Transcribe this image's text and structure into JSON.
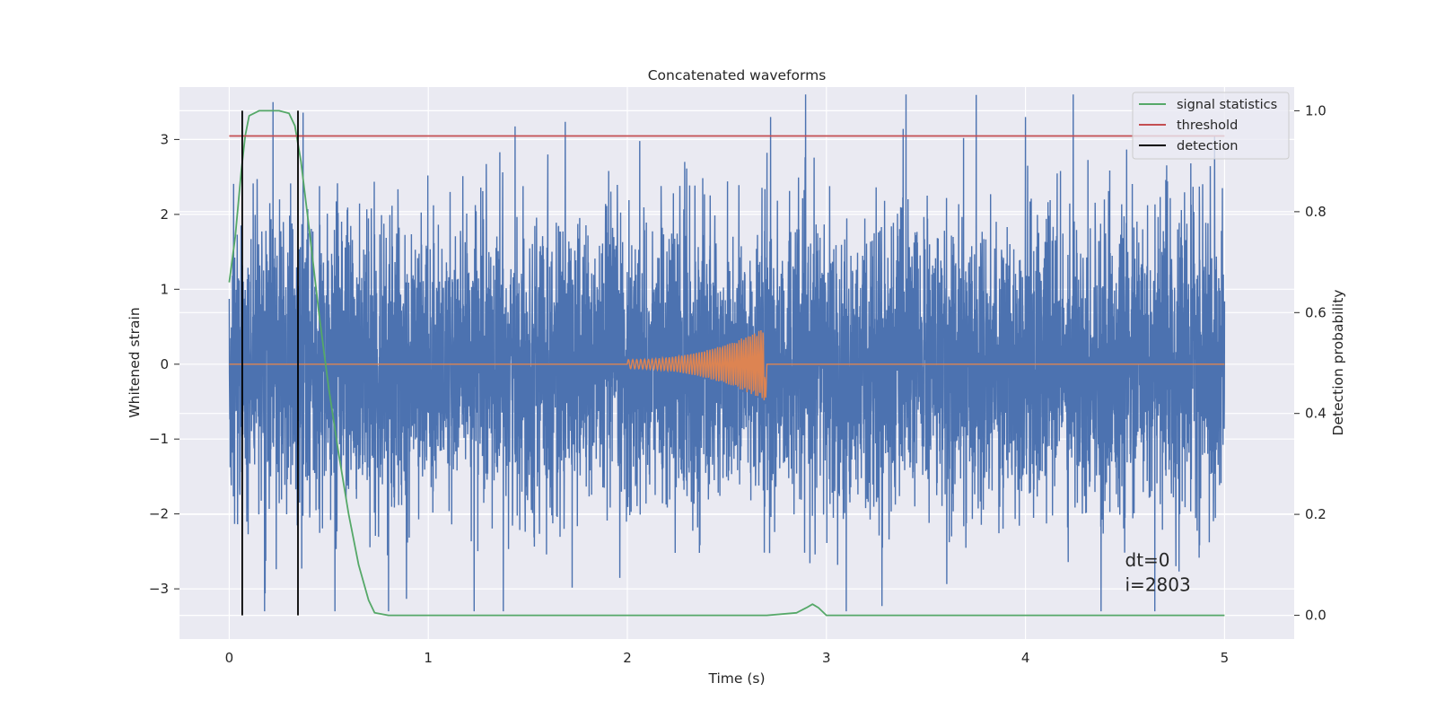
{
  "chart_data": {
    "type": "line",
    "title": "Concatenated waveforms",
    "xlabel": "Time (s)",
    "ylabel": "Whitened strain",
    "y2label": "Detection probability",
    "xlim": [
      -0.25,
      5.35
    ],
    "ylim": [
      -3.67,
      3.7
    ],
    "y2lim": [
      -0.047,
      1.047
    ],
    "xticks": [
      0,
      1,
      2,
      3,
      4,
      5
    ],
    "xtick_labels": [
      "0",
      "1",
      "2",
      "3",
      "4",
      "5"
    ],
    "yticks": [
      -3,
      -2,
      -1,
      0,
      1,
      2,
      3
    ],
    "ytick_labels": [
      "−3",
      "−2",
      "−1",
      "0",
      "1",
      "2",
      "3"
    ],
    "y2ticks": [
      0.0,
      0.2,
      0.4,
      0.6,
      0.8,
      1.0
    ],
    "y2tick_labels": [
      "0.0",
      "0.2",
      "0.4",
      "0.6",
      "0.8",
      "1.0"
    ],
    "grid": true,
    "legend_position": "top-right",
    "series": [
      {
        "name": "",
        "role": "whitened strain (noise)",
        "axis": "left",
        "color": "#4c72b0",
        "x_range": [
          0,
          5
        ],
        "envelope": [
          -3.3,
          3.6
        ],
        "spikes": [
          [
            0.18,
            -3.06
          ],
          [
            0.22,
            3.5
          ],
          [
            0.8,
            -3.35
          ],
          [
            1.23,
            -3.35
          ],
          [
            1.6,
            2.8
          ],
          [
            2.72,
            3.3
          ],
          [
            3.1,
            -3.35
          ],
          [
            3.4,
            3.6
          ],
          [
            4.0,
            3.3
          ],
          [
            4.24,
            3.6
          ],
          [
            4.38,
            -3.3
          ],
          [
            4.65,
            -3.3
          ],
          [
            4.95,
            3.05
          ]
        ]
      },
      {
        "name": "",
        "role": "injected chirp",
        "axis": "left",
        "color": "#dd8452",
        "x_range": [
          0,
          5
        ],
        "chirp_start": 2.0,
        "chirp_end": 2.7,
        "chirp_peak_amplitude": 0.5
      },
      {
        "name": "signal statistics",
        "axis": "right",
        "color": "#55a868",
        "x": [
          0,
          0.03,
          0.06,
          0.08,
          0.1,
          0.15,
          0.2,
          0.25,
          0.3,
          0.33,
          0.36,
          0.4,
          0.45,
          0.5,
          0.55,
          0.6,
          0.65,
          0.7,
          0.73,
          0.8,
          1.0,
          2.0,
          2.7,
          2.85,
          2.9,
          2.93,
          2.96,
          3.0,
          3.1,
          4.0,
          5.0
        ],
        "y": [
          0.66,
          0.75,
          0.88,
          0.95,
          0.99,
          1.0,
          1.0,
          1.0,
          0.995,
          0.97,
          0.9,
          0.77,
          0.6,
          0.45,
          0.32,
          0.2,
          0.1,
          0.03,
          0.005,
          0.0,
          0.0,
          0.0,
          0.0,
          0.005,
          0.015,
          0.022,
          0.015,
          0.0,
          0.0,
          0.0,
          0.0
        ]
      },
      {
        "name": "threshold",
        "axis": "right",
        "color": "#c44e52",
        "x": [
          0,
          5
        ],
        "y": [
          0.95,
          0.95
        ]
      },
      {
        "name": "detection",
        "axis": "right",
        "color": "#000000",
        "vlines": [
          0.065,
          0.345
        ],
        "ymin": 0.0,
        "ymax": 1.0
      }
    ],
    "annotations": [
      {
        "text": "dt=0",
        "x": 4.5,
        "y": -2.7
      },
      {
        "text": "i=2803",
        "x": 4.5,
        "y": -3.03
      }
    ],
    "colors": {
      "background": "#eaeaf2",
      "grid": "#ffffff"
    }
  }
}
